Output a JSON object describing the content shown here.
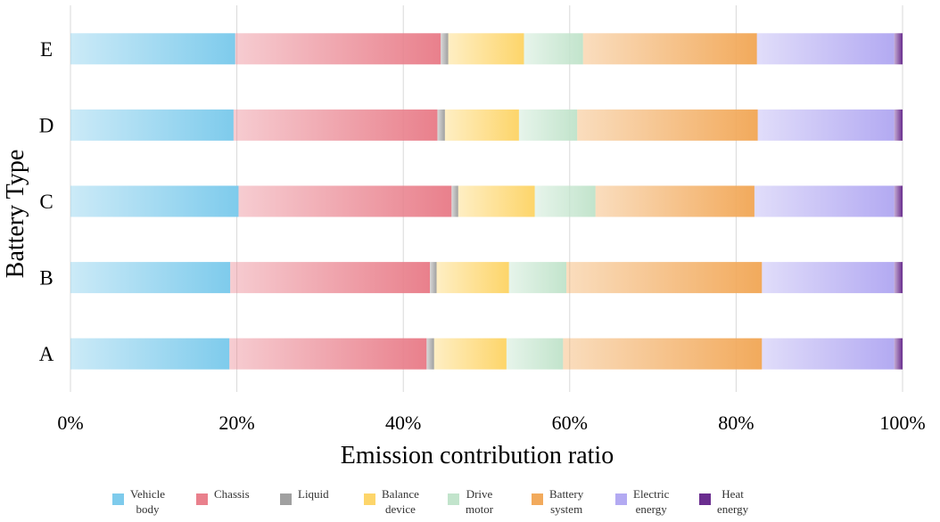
{
  "chart_data": {
    "type": "bar",
    "orientation": "horizontal",
    "stacked": true,
    "normalized": true,
    "categories": [
      "E",
      "D",
      "C",
      "B",
      "A"
    ],
    "series": [
      {
        "name": "Vehicle body",
        "label": "Vehicle\nbody",
        "color": "#7ecbec",
        "values": [
          19.8,
          19.6,
          20.2,
          19.2,
          19.1
        ]
      },
      {
        "name": "Chassis",
        "label": "Chassis",
        "color": "#e9808c",
        "values": [
          24.7,
          24.5,
          25.6,
          24.0,
          23.7
        ]
      },
      {
        "name": "Liquid",
        "label": "Liquid",
        "color": "#a0a0a0",
        "values": [
          0.9,
          0.9,
          0.8,
          0.8,
          0.9
        ]
      },
      {
        "name": "Balance device",
        "label": "Balance\ndevice",
        "color": "#fdd56a",
        "values": [
          9.1,
          8.9,
          9.2,
          8.7,
          8.7
        ]
      },
      {
        "name": "Drive motor",
        "label": "Drive\nmotor",
        "color": "#c2e4cc",
        "values": [
          7.1,
          7.0,
          7.3,
          6.9,
          6.8
        ]
      },
      {
        "name": "Battery system",
        "label": "Battery\nsystem",
        "color": "#f2aa5c",
        "values": [
          20.9,
          21.7,
          19.1,
          23.5,
          23.9
        ]
      },
      {
        "name": "Electric energy",
        "label": "Electric\nenergy",
        "color": "#b3aaf2",
        "values": [
          16.5,
          16.4,
          16.8,
          15.9,
          15.9
        ]
      },
      {
        "name": "Heat energy",
        "label": "Heat\nenergy",
        "color": "#6a2d8f",
        "values": [
          1.0,
          1.0,
          1.0,
          1.0,
          1.0
        ]
      }
    ],
    "title": "",
    "xlabel": "Emission contribution ratio",
    "ylabel": "Battery Type",
    "xlim": [
      0,
      100
    ],
    "xticks": [
      "0%",
      "20%",
      "40%",
      "60%",
      "80%",
      "100%"
    ],
    "grid": "vertical",
    "legend": "bottom"
  }
}
